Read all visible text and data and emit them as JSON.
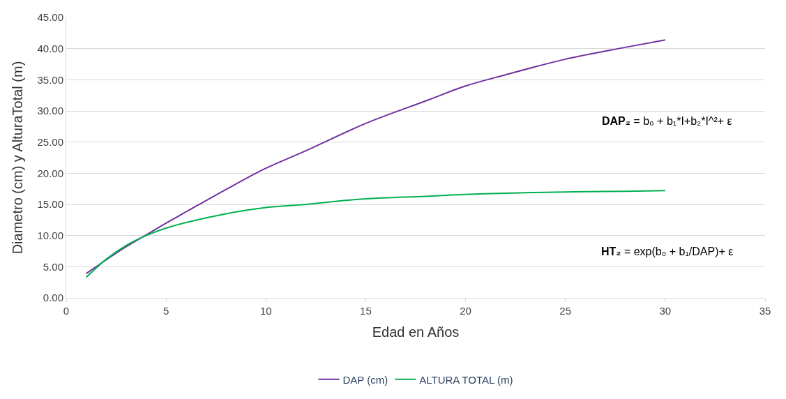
{
  "chart_data": {
    "type": "line",
    "xlabel": "Edad en Años",
    "ylabel": "Diametro (cm) y AlturaTotal (m)",
    "xlim": [
      0,
      35
    ],
    "xticks": [
      0,
      5,
      10,
      15,
      20,
      25,
      30,
      35
    ],
    "ylim": [
      0,
      45
    ],
    "yticks": [
      {
        "value": 0,
        "label": "0.00"
      },
      {
        "value": 5,
        "label": "5.00"
      },
      {
        "value": 10,
        "label": "10.00"
      },
      {
        "value": 15,
        "label": "15.00"
      },
      {
        "value": 20,
        "label": "20.00"
      },
      {
        "value": 25,
        "label": "25.00"
      },
      {
        "value": 30,
        "label": "30.00"
      },
      {
        "value": 35,
        "label": "35.00"
      },
      {
        "value": 40,
        "label": "40.00"
      },
      {
        "value": 45,
        "label": "45.00"
      }
    ],
    "grid": "y",
    "legend": "bottom",
    "marker": "none",
    "line_style": "solid",
    "x": [
      1,
      2,
      3,
      4,
      5,
      6,
      8,
      10,
      12,
      15,
      18,
      20,
      22,
      25,
      28,
      30
    ],
    "series": [
      {
        "name": "DAP (cm)",
        "color": "#7030a0",
        "values": [
          3.9,
          6.1,
          8.2,
          10.1,
          12.0,
          13.8,
          17.4,
          20.8,
          23.6,
          28.0,
          31.6,
          34.0,
          35.8,
          38.3,
          40.2,
          41.4
        ]
      },
      {
        "name": "ALTURA TOTAL (m)",
        "color": "#00b050",
        "values": [
          3.3,
          6.2,
          8.4,
          10.0,
          11.2,
          12.1,
          13.5,
          14.5,
          15.0,
          15.9,
          16.3,
          16.6,
          16.8,
          17.0,
          17.1,
          17.2
        ]
      }
    ],
    "annotations": [
      "DAP₂ = b₀ + b₁*I+b₂*I^²+ ε",
      "HT₂ = exp(b₀ + b₁/DAP)+ ε"
    ]
  }
}
